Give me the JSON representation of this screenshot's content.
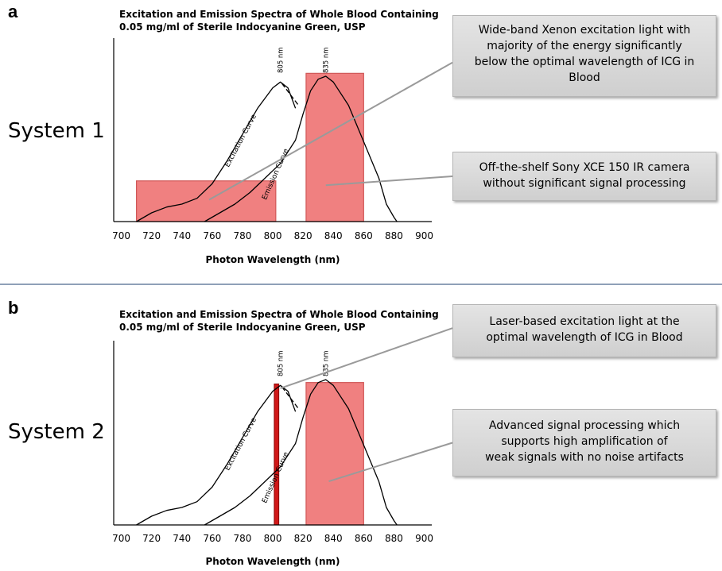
{
  "chart_data": [
    {
      "type": "line",
      "panel_letter": "a",
      "system_label": "System 1",
      "title_line1": "Excitation and Emission Spectra of Whole Blood Containing",
      "title_line2": "0.05 mg/ml of Sterile Indocyanine Green, USP",
      "xlabel": "Photon Wavelength (nm)",
      "ylabel": "",
      "xlim": [
        695,
        905
      ],
      "ylim": [
        0,
        1
      ],
      "x_ticks": [
        700,
        720,
        740,
        760,
        780,
        800,
        820,
        840,
        860,
        880,
        900
      ],
      "grid": false,
      "series": [
        {
          "name": "Excitation Curve",
          "x": [
            710,
            720,
            730,
            740,
            750,
            760,
            770,
            780,
            790,
            800,
            805,
            810,
            815
          ],
          "y": [
            0.0,
            0.06,
            0.1,
            0.12,
            0.16,
            0.26,
            0.42,
            0.6,
            0.78,
            0.92,
            0.96,
            0.92,
            0.78
          ]
        },
        {
          "name": "Emission Curve",
          "x": [
            755,
            765,
            775,
            785,
            795,
            805,
            815,
            820,
            825,
            830,
            835,
            840,
            850,
            860,
            870,
            875,
            880,
            882
          ],
          "y": [
            0.0,
            0.06,
            0.12,
            0.2,
            0.3,
            0.4,
            0.56,
            0.74,
            0.9,
            0.98,
            1.0,
            0.96,
            0.8,
            0.55,
            0.3,
            0.12,
            0.03,
            0.0
          ]
        }
      ],
      "peak_labels": [
        {
          "text": "805 nm",
          "x": 805,
          "dashed_to": 817
        },
        {
          "text": "835 nm",
          "x": 835
        }
      ],
      "bands": [
        {
          "x_start": 710,
          "x_end": 802,
          "y_top": 0.28
        },
        {
          "x_start": 822,
          "x_end": 860,
          "y_top": 1.02
        }
      ],
      "band_color": "#f08080",
      "band_edge_color": "#d05858",
      "callouts": [
        {
          "lines": [
            "Wide-band Xenon excitation light with",
            "majority of the energy significantly",
            "below the optimal wavelength of ICG in",
            "Blood"
          ],
          "pointer_x": 758,
          "pointer_y": 0.15
        },
        {
          "lines": [
            "Off-the-shelf Sony XCE 150 IR camera",
            "without significant signal processing"
          ],
          "pointer_x": 835,
          "pointer_y": 0.25
        }
      ]
    },
    {
      "type": "line",
      "panel_letter": "b",
      "system_label": "System 2",
      "title_line1": "Excitation and Emission Spectra of Whole Blood Containing",
      "title_line2": "0.05 mg/ml of Sterile Indocyanine Green, USP",
      "xlabel": "Photon Wavelength (nm)",
      "ylabel": "",
      "xlim": [
        695,
        905
      ],
      "ylim": [
        0,
        1
      ],
      "x_ticks": [
        700,
        720,
        740,
        760,
        780,
        800,
        820,
        840,
        860,
        880,
        900
      ],
      "grid": false,
      "series": [
        {
          "name": "Excitation Curve",
          "x": [
            710,
            720,
            730,
            740,
            750,
            760,
            770,
            780,
            790,
            800,
            805,
            810,
            815
          ],
          "y": [
            0.0,
            0.06,
            0.1,
            0.12,
            0.16,
            0.26,
            0.42,
            0.6,
            0.78,
            0.92,
            0.96,
            0.92,
            0.78
          ]
        },
        {
          "name": "Emission Curve",
          "x": [
            755,
            765,
            775,
            785,
            795,
            805,
            815,
            820,
            825,
            830,
            835,
            840,
            850,
            860,
            870,
            875,
            880,
            882
          ],
          "y": [
            0.0,
            0.06,
            0.12,
            0.2,
            0.3,
            0.4,
            0.56,
            0.74,
            0.9,
            0.98,
            1.0,
            0.96,
            0.8,
            0.55,
            0.3,
            0.12,
            0.03,
            0.0
          ]
        }
      ],
      "peak_labels": [
        {
          "text": "805 nm",
          "x": 805,
          "dashed_to": 817
        },
        {
          "text": "835 nm",
          "x": 835
        }
      ],
      "bands": [
        {
          "x_start": 801,
          "x_end": 804,
          "y_top": 0.97,
          "laser": true
        },
        {
          "x_start": 822,
          "x_end": 860,
          "y_top": 0.98
        }
      ],
      "band_color": "#f08080",
      "band_edge_color": "#d05858",
      "laser_color": "#d01818",
      "callouts": [
        {
          "lines": [
            "Laser-based excitation light at the",
            "optimal wavelength of ICG in Blood"
          ],
          "pointer_x": 805,
          "pointer_y": 0.94
        },
        {
          "lines": [
            "Advanced signal processing which",
            "supports high amplification of",
            "weak signals with no noise artifacts"
          ],
          "pointer_x": 837,
          "pointer_y": 0.3
        }
      ]
    }
  ]
}
